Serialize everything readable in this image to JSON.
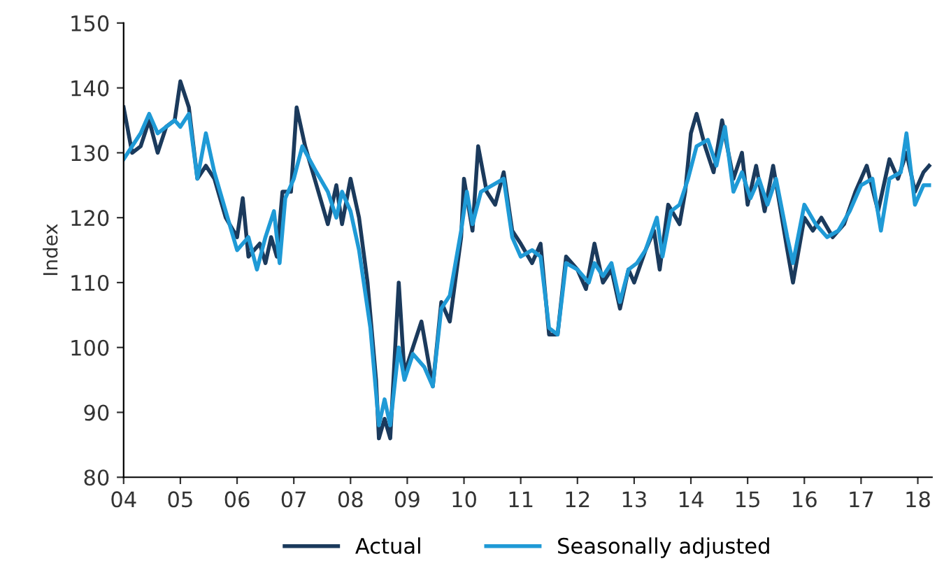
{
  "chart_data": {
    "type": "line",
    "ylabel": "Index",
    "xlim": [
      2004,
      2018.25
    ],
    "xticks": [
      {
        "value": 2004,
        "label": "04"
      },
      {
        "value": 2005,
        "label": "05"
      },
      {
        "value": 2006,
        "label": "06"
      },
      {
        "value": 2007,
        "label": "07"
      },
      {
        "value": 2008,
        "label": "08"
      },
      {
        "value": 2009,
        "label": "09"
      },
      {
        "value": 2010,
        "label": "10"
      },
      {
        "value": 2011,
        "label": "11"
      },
      {
        "value": 2012,
        "label": "12"
      },
      {
        "value": 2013,
        "label": "13"
      },
      {
        "value": 2014,
        "label": "14"
      },
      {
        "value": 2015,
        "label": "15"
      },
      {
        "value": 2016,
        "label": "16"
      },
      {
        "value": 2017,
        "label": "17"
      },
      {
        "value": 2018,
        "label": "18"
      }
    ],
    "ylim": [
      80,
      150
    ],
    "yticks": [
      80,
      90,
      100,
      110,
      120,
      130,
      140,
      150
    ],
    "grid": false,
    "legend": "bottom",
    "marker": "none",
    "line_style": "solid",
    "series": [
      {
        "name": "Actual",
        "color": "#1b3a5c",
        "x": [
          2004.0,
          2004.15,
          2004.3,
          2004.45,
          2004.6,
          2004.75,
          2004.9,
          2005.0,
          2005.15,
          2005.3,
          2005.45,
          2005.6,
          2005.8,
          2006.0,
          2006.1,
          2006.2,
          2006.4,
          2006.5,
          2006.6,
          2006.7,
          2006.8,
          2006.95,
          2007.05,
          2007.2,
          2007.4,
          2007.6,
          2007.75,
          2007.85,
          2008.0,
          2008.15,
          2008.3,
          2008.45,
          2008.5,
          2008.6,
          2008.7,
          2008.85,
          2008.95,
          2009.1,
          2009.25,
          2009.45,
          2009.6,
          2009.75,
          2009.95,
          2010.0,
          2010.15,
          2010.25,
          2010.4,
          2010.55,
          2010.7,
          2010.85,
          2011.0,
          2011.2,
          2011.35,
          2011.5,
          2011.65,
          2011.8,
          2012.0,
          2012.15,
          2012.3,
          2012.45,
          2012.6,
          2012.75,
          2012.9,
          2013.0,
          2013.2,
          2013.35,
          2013.45,
          2013.6,
          2013.8,
          2013.9,
          2014.0,
          2014.1,
          2014.25,
          2014.4,
          2014.55,
          2014.75,
          2014.9,
          2015.0,
          2015.15,
          2015.3,
          2015.45,
          2015.7,
          2015.8,
          2016.0,
          2016.15,
          2016.3,
          2016.5,
          2016.7,
          2016.9,
          2017.1,
          2017.3,
          2017.5,
          2017.65,
          2017.8,
          2017.95,
          2018.1,
          2018.2
        ],
        "values": [
          137,
          130,
          131,
          135,
          130,
          134,
          135,
          141,
          137,
          126,
          128,
          126,
          120,
          117,
          123,
          114,
          116,
          113,
          117,
          114,
          124,
          124,
          137,
          131,
          125,
          119,
          125,
          119,
          126,
          120,
          110,
          95,
          86,
          89,
          86,
          110,
          96,
          100,
          104,
          94,
          107,
          104,
          117,
          126,
          118,
          131,
          124,
          122,
          127,
          118,
          116,
          113,
          116,
          102,
          102,
          114,
          112,
          109,
          116,
          110,
          112,
          106,
          112,
          110,
          115,
          118,
          112,
          122,
          119,
          124,
          133,
          136,
          131,
          127,
          135,
          126,
          130,
          122,
          128,
          121,
          128,
          115,
          110,
          120,
          118,
          120,
          117,
          119,
          124,
          128,
          121,
          129,
          126,
          130,
          124,
          127,
          128
        ]
      },
      {
        "name": "Seasonally adjusted",
        "color": "#1f9ad6",
        "x": [
          2004.0,
          2004.3,
          2004.45,
          2004.6,
          2004.9,
          2005.0,
          2005.15,
          2005.3,
          2005.45,
          2005.6,
          2005.8,
          2006.0,
          2006.2,
          2006.35,
          2006.5,
          2006.65,
          2006.75,
          2006.85,
          2007.0,
          2007.15,
          2007.4,
          2007.6,
          2007.75,
          2007.85,
          2008.0,
          2008.15,
          2008.35,
          2008.5,
          2008.6,
          2008.7,
          2008.85,
          2008.95,
          2009.1,
          2009.3,
          2009.45,
          2009.6,
          2009.75,
          2009.95,
          2010.05,
          2010.15,
          2010.3,
          2010.5,
          2010.7,
          2010.85,
          2011.0,
          2011.2,
          2011.35,
          2011.5,
          2011.65,
          2011.8,
          2012.0,
          2012.2,
          2012.3,
          2012.45,
          2012.6,
          2012.75,
          2012.9,
          2013.05,
          2013.2,
          2013.4,
          2013.5,
          2013.65,
          2013.8,
          2013.95,
          2014.1,
          2014.3,
          2014.45,
          2014.6,
          2014.75,
          2014.9,
          2015.05,
          2015.2,
          2015.35,
          2015.5,
          2015.7,
          2015.8,
          2016.0,
          2016.2,
          2016.4,
          2016.6,
          2016.8,
          2017.0,
          2017.2,
          2017.35,
          2017.5,
          2017.7,
          2017.8,
          2017.95,
          2018.1,
          2018.2
        ],
        "values": [
          129,
          133,
          136,
          133,
          135,
          134,
          136,
          126,
          133,
          127,
          121,
          115,
          117,
          112,
          117,
          121,
          113,
          123,
          126,
          131,
          127,
          124,
          120,
          124,
          121,
          115,
          103,
          88,
          92,
          88,
          100,
          95,
          99,
          97,
          94,
          106,
          108,
          118,
          124,
          119,
          124,
          125,
          126,
          117,
          114,
          115,
          114,
          103,
          102,
          113,
          112,
          110,
          113,
          111,
          113,
          107,
          112,
          113,
          115,
          120,
          114,
          121,
          122,
          126,
          131,
          132,
          128,
          134,
          124,
          127,
          123,
          126,
          122,
          126,
          117,
          113,
          122,
          119,
          117,
          118,
          121,
          125,
          126,
          118,
          126,
          127,
          133,
          122,
          125,
          125
        ]
      }
    ]
  }
}
